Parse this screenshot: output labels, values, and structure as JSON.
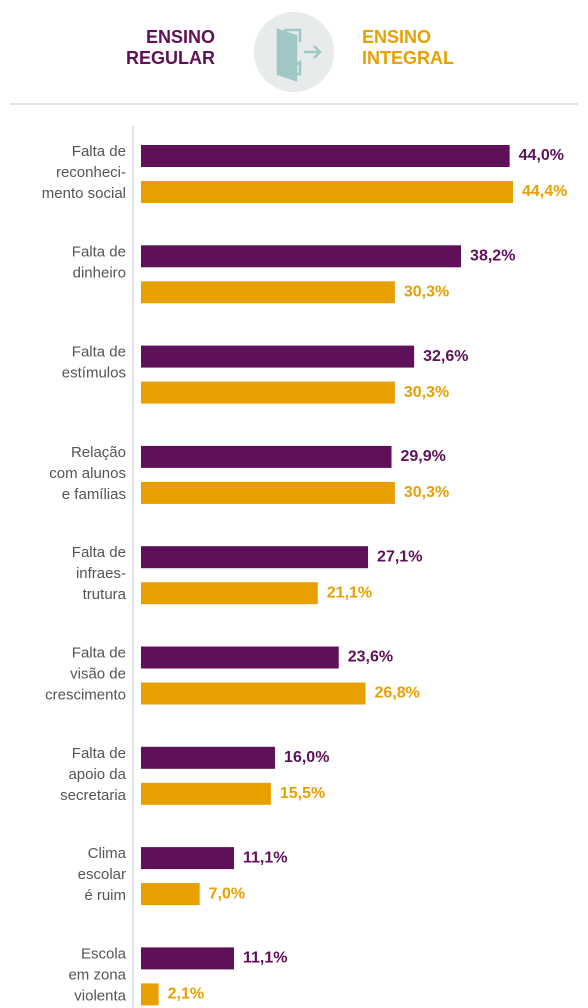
{
  "chart_data": {
    "type": "grouped-horizontal-bar",
    "categories": [
      [
        "Falta de",
        "reconheci-",
        "mento social"
      ],
      [
        "Falta de",
        "dinheiro"
      ],
      [
        "Falta de",
        "estímulos"
      ],
      [
        "Relação",
        "com alunos",
        "e famílias"
      ],
      [
        "Falta de",
        "infraes-",
        "trutura"
      ],
      [
        "Falta de",
        "visão de",
        "crescimento"
      ],
      [
        "Falta de",
        "apoio da",
        "secretaria"
      ],
      [
        "Clima",
        "escolar",
        "é ruim"
      ],
      [
        "Escola",
        "em zona",
        "violenta"
      ]
    ],
    "series": [
      {
        "name": "ENSINO REGULAR",
        "color": "#5e1059",
        "values": [
          44.0,
          38.2,
          32.6,
          29.9,
          27.1,
          23.6,
          16.0,
          11.1,
          11.1
        ],
        "value_labels": [
          "44,0%",
          "38,2%",
          "32,6%",
          "29,9%",
          "27,1%",
          "23,6%",
          "16,0%",
          "11,1%",
          "11,1%"
        ]
      },
      {
        "name": "ENSINO INTEGRAL",
        "color": "#e89f00",
        "values": [
          44.4,
          30.3,
          30.3,
          30.3,
          21.1,
          26.8,
          15.5,
          7.0,
          2.1
        ],
        "value_labels": [
          "44,4%",
          "30,3%",
          "30,3%",
          "30,3%",
          "21,1%",
          "26,8%",
          "15,5%",
          "7,0%",
          "2,1%"
        ]
      }
    ]
  }
}
